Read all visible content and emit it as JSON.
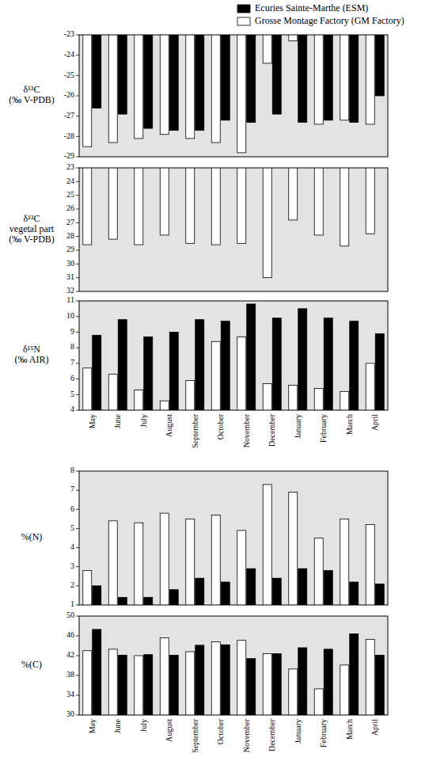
{
  "chart_data": [
    {
      "type": "bar",
      "legend": "top-right",
      "tick_labels": "y",
      "ylabel": "δ¹³C\n(‰ V-PDB)",
      "categories": [
        "May",
        "June",
        "July",
        "August",
        "September",
        "October",
        "November",
        "December",
        "January",
        "February",
        "March",
        "April"
      ],
      "ylim": [
        -29,
        -23
      ],
      "yticks": [
        -23,
        -24,
        -25,
        -26,
        -27,
        -28,
        -29
      ],
      "series": [
        {
          "name": "Grosse Montage Factory (GM Factory)",
          "color": "#ffffff",
          "values": [
            -28.5,
            -28.3,
            -28.1,
            -27.9,
            -28.1,
            -28.3,
            -28.8,
            -24.4,
            -23.3,
            -27.4,
            -27.2,
            -27.4
          ]
        },
        {
          "name": "Ecuries Sainte-Marthe (ESM)",
          "color": "#000000",
          "values": [
            -26.6,
            -26.9,
            -27.6,
            -27.7,
            -27.7,
            -27.2,
            -27.3,
            -26.9,
            -27.3,
            -27.2,
            -27.3,
            -26.0
          ]
        }
      ]
    },
    {
      "type": "bar",
      "tick_labels": "y",
      "ylabel": "δ¹³C\nvegetal part\n(‰ V-PDB)",
      "categories": [
        "May",
        "June",
        "July",
        "August",
        "September",
        "October",
        "November",
        "December",
        "January",
        "February",
        "March",
        "April"
      ],
      "ylim": [
        32,
        23
      ],
      "yticks": [
        23,
        24,
        25,
        26,
        27,
        28,
        29,
        30,
        31,
        32
      ],
      "series": [
        {
          "name": "Grosse Montage Factory (GM Factory)",
          "color": "#ffffff",
          "values": [
            28.6,
            28.2,
            28.6,
            27.9,
            28.5,
            28.6,
            28.5,
            31.0,
            26.8,
            27.9,
            28.7,
            27.8
          ]
        }
      ]
    },
    {
      "type": "bar",
      "ylabel": "δ¹⁵N\n(‰ AIR)",
      "categories": [
        "May",
        "June",
        "July",
        "August",
        "September",
        "October",
        "November",
        "December",
        "January",
        "February",
        "March",
        "April"
      ],
      "ylim": [
        4,
        11
      ],
      "yticks": [
        4,
        5,
        6,
        7,
        8,
        9,
        10,
        11
      ],
      "series": [
        {
          "name": "Grosse Montage Factory (GM Factory)",
          "color": "#ffffff",
          "values": [
            6.7,
            6.3,
            5.3,
            4.6,
            5.9,
            8.4,
            8.7,
            5.7,
            5.6,
            5.4,
            5.2,
            7.0
          ]
        },
        {
          "name": "Ecuries Sainte-Marthe (ESM)",
          "color": "#000000",
          "values": [
            8.8,
            9.8,
            8.7,
            9.0,
            9.8,
            9.7,
            10.8,
            9.9,
            10.5,
            9.9,
            9.7,
            8.9
          ]
        }
      ]
    },
    {
      "type": "bar",
      "tick_labels": "y",
      "ylabel": "%(N)",
      "categories": [
        "May",
        "June",
        "July",
        "August",
        "September",
        "October",
        "November",
        "December",
        "January",
        "February",
        "March",
        "April"
      ],
      "ylim": [
        1,
        8
      ],
      "yticks": [
        1,
        2,
        3,
        4,
        5,
        6,
        7,
        8
      ],
      "series": [
        {
          "name": "Grosse Montage Factory (GM Factory)",
          "color": "#ffffff",
          "values": [
            2.8,
            5.4,
            5.3,
            5.8,
            5.5,
            5.7,
            4.9,
            7.3,
            6.9,
            4.5,
            5.5,
            5.2
          ]
        },
        {
          "name": "Ecuries Sainte-Marthe (ESM)",
          "color": "#000000",
          "values": [
            2.0,
            1.4,
            1.4,
            1.8,
            2.4,
            2.2,
            2.9,
            2.4,
            2.9,
            2.8,
            2.2,
            2.1
          ]
        }
      ]
    },
    {
      "type": "bar",
      "ylabel": "%(C)",
      "categories": [
        "May",
        "June",
        "July",
        "August",
        "September",
        "October",
        "November",
        "December",
        "January",
        "February",
        "March",
        "April"
      ],
      "ylim": [
        30,
        50
      ],
      "yticks": [
        30,
        34,
        38,
        42,
        46,
        50
      ],
      "series": [
        {
          "name": "Grosse Montage Factory (GM Factory)",
          "color": "#ffffff",
          "values": [
            43.0,
            43.3,
            42.0,
            45.6,
            42.8,
            44.8,
            45.1,
            42.4,
            39.3,
            35.3,
            40.1,
            45.3
          ]
        },
        {
          "name": "Ecuries Sainte-Marthe (ESM)",
          "color": "#000000",
          "values": [
            47.3,
            42.1,
            42.2,
            42.1,
            44.1,
            44.2,
            41.4,
            42.4,
            43.6,
            43.3,
            46.4,
            42.1
          ]
        }
      ]
    }
  ]
}
